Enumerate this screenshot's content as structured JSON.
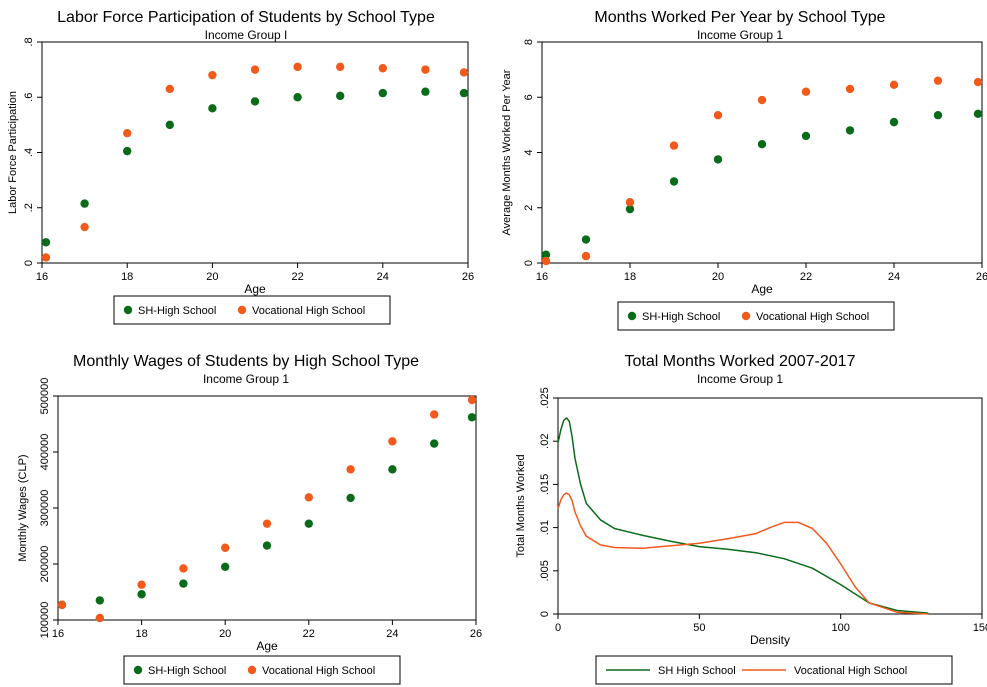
{
  "colors": {
    "sh": "#0a6b1a",
    "voc": "#f25a1c",
    "frame": "#000000"
  },
  "chart_data": [
    {
      "type": "scatter",
      "title": "Labor Force Participation of Students by School Type",
      "subtitle": "Income Group I",
      "xlabel": "Age",
      "ylabel": "Labor Force Participation",
      "xlim": [
        16,
        26
      ],
      "ylim": [
        0,
        0.8
      ],
      "xticks": [
        16,
        18,
        20,
        22,
        24,
        26
      ],
      "yticks": [
        0,
        0.2,
        0.4,
        0.6,
        0.8
      ],
      "ytick_labels": [
        "0",
        ".2",
        ".4",
        ".6",
        ".8"
      ],
      "x": [
        16,
        17,
        18,
        19,
        20,
        21,
        22,
        23,
        24,
        25,
        26
      ],
      "series": [
        {
          "name": "SH-High School",
          "values": [
            0.075,
            0.215,
            0.405,
            0.5,
            0.56,
            0.585,
            0.6,
            0.605,
            0.615,
            0.62,
            0.615
          ]
        },
        {
          "name": "Vocational High School",
          "values": [
            0.02,
            0.13,
            0.47,
            0.63,
            0.68,
            0.7,
            0.71,
            0.71,
            0.705,
            0.7,
            0.69
          ]
        }
      ]
    },
    {
      "type": "scatter",
      "title": "Months Worked Per Year by School Type",
      "subtitle": "Income Group 1",
      "xlabel": "Age",
      "ylabel": "Average Months Worked Per Year",
      "xlim": [
        16,
        26
      ],
      "ylim": [
        0,
        8
      ],
      "xticks": [
        16,
        18,
        20,
        22,
        24,
        26
      ],
      "yticks": [
        0,
        2,
        4,
        6,
        8
      ],
      "ytick_labels": [
        "0",
        "2",
        "4",
        "6",
        "8"
      ],
      "x": [
        16,
        17,
        18,
        19,
        20,
        21,
        22,
        23,
        24,
        25,
        26
      ],
      "series": [
        {
          "name": "SH-High School",
          "values": [
            0.3,
            0.85,
            1.95,
            2.95,
            3.75,
            4.3,
            4.6,
            4.8,
            5.1,
            5.35,
            5.4
          ]
        },
        {
          "name": "Vocational High School",
          "values": [
            0.05,
            0.25,
            2.2,
            4.25,
            5.35,
            5.9,
            6.2,
            6.3,
            6.45,
            6.6,
            6.55
          ]
        }
      ]
    },
    {
      "type": "scatter",
      "title": "Monthly Wages of Students by High School Type",
      "subtitle": "Income Group 1",
      "xlabel": "Age",
      "ylabel": "Monthly Wages (CLP)",
      "xlim": [
        16,
        26
      ],
      "ylim": [
        100000,
        500000
      ],
      "xticks": [
        16,
        18,
        20,
        22,
        24,
        26
      ],
      "yticks": [
        100000,
        200000,
        300000,
        400000,
        500000
      ],
      "ytick_labels": [
        "100000",
        "200000",
        "300000",
        "400000",
        "500000"
      ],
      "x": [
        16,
        17,
        18,
        19,
        20,
        21,
        22,
        23,
        24,
        25,
        26
      ],
      "series": [
        {
          "name": "SH-High School",
          "values": [
            127000,
            135000,
            146000,
            165000,
            195000,
            233000,
            272000,
            318000,
            369000,
            415000,
            462000
          ]
        },
        {
          "name": "Vocational High School",
          "values": [
            127000,
            98000,
            163000,
            192000,
            229000,
            272000,
            319000,
            369000,
            419000,
            467000,
            517000
          ]
        }
      ]
    },
    {
      "type": "line",
      "title": "Total Months Worked 2007-2017",
      "subtitle": "Income Group 1",
      "xlabel": "Density",
      "ylabel": "Total Months Worked",
      "xlim": [
        0,
        150
      ],
      "ylim": [
        0,
        0.025
      ],
      "xticks": [
        0,
        50,
        100,
        150
      ],
      "yticks": [
        0,
        0.005,
        0.01,
        0.015,
        0.02,
        0.025
      ],
      "ytick_labels": [
        "0",
        ".005",
        ".01",
        ".015",
        ".02",
        ".025"
      ],
      "series": [
        {
          "name": "SH High School",
          "x": [
            0,
            1,
            2,
            3,
            4,
            5,
            6,
            8,
            10,
            15,
            20,
            30,
            40,
            50,
            60,
            70,
            80,
            90,
            100,
            110,
            120,
            131
          ],
          "values": [
            0.0198,
            0.0213,
            0.0224,
            0.0227,
            0.0223,
            0.0205,
            0.018,
            0.015,
            0.0128,
            0.0109,
            0.0099,
            0.0091,
            0.0084,
            0.0078,
            0.0075,
            0.0071,
            0.0064,
            0.0053,
            0.0034,
            0.0013,
            0.0004,
            0.0001
          ]
        },
        {
          "name": "Vocational High School",
          "x": [
            0,
            1,
            2,
            3,
            4,
            5,
            6,
            8,
            10,
            15,
            20,
            30,
            40,
            50,
            60,
            70,
            75,
            80,
            85,
            90,
            95,
            100,
            105,
            110,
            120,
            131
          ],
          "values": [
            0.0122,
            0.0132,
            0.0138,
            0.014,
            0.0138,
            0.0131,
            0.0118,
            0.0102,
            0.009,
            0.008,
            0.0077,
            0.0076,
            0.0079,
            0.0082,
            0.0087,
            0.0093,
            0.01,
            0.0106,
            0.0106,
            0.0099,
            0.0082,
            0.0058,
            0.0032,
            0.0013,
            0.0002,
            0.0
          ]
        }
      ]
    }
  ]
}
